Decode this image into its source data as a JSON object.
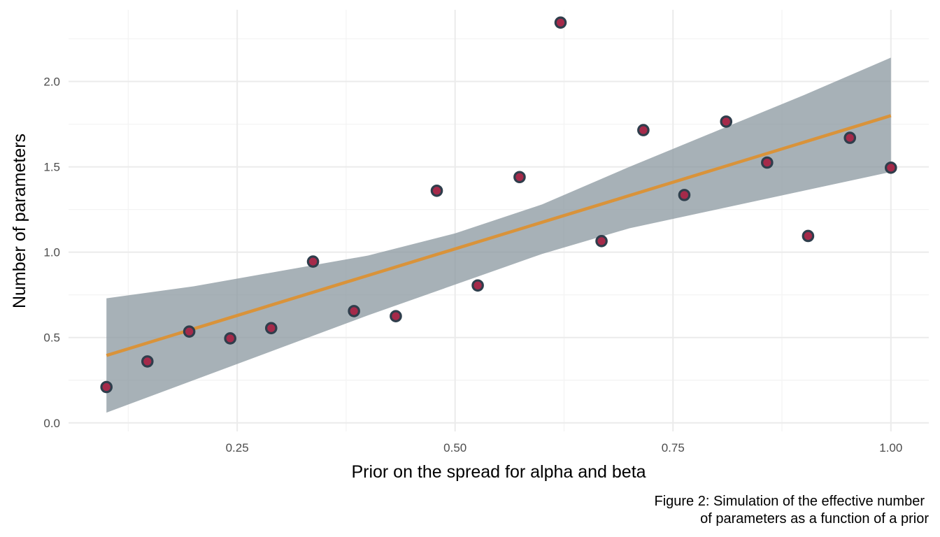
{
  "chart_data": {
    "type": "scatter",
    "title": "",
    "xlabel": "Prior on the spread for alpha and beta",
    "ylabel": "Number of parameters",
    "xlim": [
      0.0565,
      1.0435
    ],
    "ylim": [
      -0.05,
      2.42
    ],
    "x_ticks": [
      0.25,
      0.5,
      0.75,
      1.0
    ],
    "x_tick_labels": [
      "0.25",
      "0.50",
      "0.75",
      "1.00"
    ],
    "y_ticks": [
      0.0,
      0.5,
      1.0,
      1.5,
      2.0
    ],
    "y_tick_labels": [
      "0.0",
      "0.5",
      "1.0",
      "1.5",
      "2.0"
    ],
    "grid": true,
    "series": [
      {
        "type": "scatter",
        "x": [
          0.1,
          0.147,
          0.195,
          0.242,
          0.289,
          0.337,
          0.384,
          0.432,
          0.479,
          0.526,
          0.574,
          0.621,
          0.668,
          0.716,
          0.763,
          0.811,
          0.858,
          0.905,
          0.953,
          1.0
        ],
        "y": [
          0.21,
          0.36,
          0.535,
          0.495,
          0.555,
          0.945,
          0.655,
          0.625,
          1.36,
          0.805,
          1.44,
          2.345,
          1.065,
          1.715,
          1.335,
          1.765,
          1.525,
          1.095,
          1.67,
          1.495
        ]
      },
      {
        "type": "line",
        "kind": "linear-fit",
        "x": [
          0.1,
          1.0
        ],
        "y": [
          0.395,
          1.8
        ]
      },
      {
        "type": "area",
        "kind": "confidence-band",
        "x": [
          0.1,
          0.2,
          0.3,
          0.4,
          0.5,
          0.6,
          0.7,
          0.8,
          0.9,
          1.0
        ],
        "lower": [
          0.06,
          0.25,
          0.44,
          0.63,
          0.81,
          0.99,
          1.14,
          1.25,
          1.36,
          1.47
        ],
        "upper": [
          0.73,
          0.8,
          0.89,
          0.98,
          1.11,
          1.28,
          1.5,
          1.71,
          1.92,
          2.14
        ]
      }
    ],
    "caption_lines": [
      "Figure 2: Simulation of the effective number",
      "of parameters as a function of a prior"
    ],
    "colors": {
      "point_fill": "#a52a4a",
      "point_stroke": "#2f3e4c",
      "line": "#d9933a",
      "band": "#8a979f",
      "grid_major": "#ebebeb",
      "grid_minor": "#f3f3f3"
    }
  }
}
